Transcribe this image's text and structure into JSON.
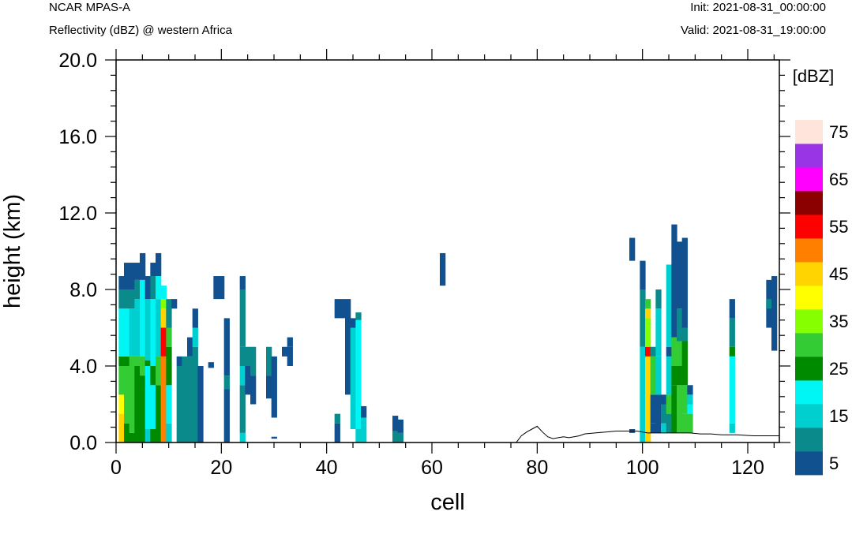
{
  "header": {
    "model": "NCAR MPAS-A",
    "field": "Reflectivity (dBZ) @ western Africa",
    "init": "Init: 2021-08-31_00:00:00",
    "valid": "Valid: 2021-08-31_19:00:00"
  },
  "chart_data": {
    "type": "heatmap",
    "xlabel": "cell",
    "ylabel": "height (km)",
    "xlim": [
      0,
      126
    ],
    "ylim": [
      0,
      20
    ],
    "x_ticks": [
      0,
      20,
      40,
      60,
      80,
      100,
      120
    ],
    "y_ticks": [
      0,
      4,
      8,
      12,
      16,
      20
    ],
    "x_tick_labels": [
      "0",
      "20",
      "40",
      "60",
      "80",
      "100",
      "120"
    ],
    "y_tick_labels": [
      "0.0",
      "4.0",
      "8.0",
      "12.0",
      "16.0",
      "20.0"
    ],
    "colorbar": {
      "unit_label": "[dBZ]",
      "levels": [
        5,
        10,
        15,
        20,
        25,
        30,
        35,
        40,
        45,
        50,
        55,
        60,
        65,
        70,
        75
      ],
      "labels": [
        "5",
        "15",
        "25",
        "35",
        "45",
        "55",
        "65",
        "75"
      ],
      "colors": [
        "#11518f",
        "#0a8a8a",
        "#00cfcf",
        "#00f5f5",
        "#008a00",
        "#34cc34",
        "#86ff00",
        "#ffff00",
        "#ffd400",
        "#ff8000",
        "#ff0000",
        "#8b0000",
        "#ff00ff",
        "#9a35e6",
        "#ffe4db"
      ]
    },
    "terrain": [
      [
        0,
        0
      ],
      [
        76,
        0
      ],
      [
        77,
        0.35
      ],
      [
        78,
        0.55
      ],
      [
        79,
        0.7
      ],
      [
        80,
        0.85
      ],
      [
        81,
        0.55
      ],
      [
        82,
        0.3
      ],
      [
        83,
        0.2
      ],
      [
        84,
        0.25
      ],
      [
        85,
        0.3
      ],
      [
        86,
        0.25
      ],
      [
        87,
        0.3
      ],
      [
        88,
        0.35
      ],
      [
        89,
        0.45
      ],
      [
        91,
        0.5
      ],
      [
        93,
        0.55
      ],
      [
        95,
        0.6
      ],
      [
        97,
        0.6
      ],
      [
        99,
        0.6
      ],
      [
        101,
        0.5
      ],
      [
        103,
        0.5
      ],
      [
        105,
        0.5
      ],
      [
        107,
        0.5
      ],
      [
        109,
        0.5
      ],
      [
        111,
        0.45
      ],
      [
        113,
        0.45
      ],
      [
        115,
        0.4
      ],
      [
        118,
        0.4
      ],
      [
        121,
        0.35
      ],
      [
        124,
        0.35
      ],
      [
        126,
        0.35
      ]
    ],
    "columns": [
      {
        "x": 1,
        "cells": [
          [
            0,
            1.5,
            45
          ],
          [
            1.5,
            2.5,
            40
          ],
          [
            2.5,
            4,
            30
          ],
          [
            4,
            4.5,
            25
          ],
          [
            4.5,
            7,
            20
          ],
          [
            7,
            8,
            10
          ],
          [
            8,
            8.7,
            5
          ]
        ]
      },
      {
        "x": 2,
        "cells": [
          [
            0,
            1,
            25
          ],
          [
            1,
            4,
            30
          ],
          [
            4,
            4.5,
            25
          ],
          [
            4.5,
            7,
            20
          ],
          [
            7,
            8,
            10
          ],
          [
            8,
            9.4,
            5
          ]
        ]
      },
      {
        "x": 3,
        "cells": [
          [
            0,
            0.5,
            25
          ],
          [
            0.5,
            4.5,
            30
          ],
          [
            4.5,
            7,
            15
          ],
          [
            7,
            8,
            10
          ],
          [
            8,
            9.4,
            5
          ]
        ]
      },
      {
        "x": 4,
        "cells": [
          [
            0,
            4,
            25
          ],
          [
            4,
            4.5,
            30
          ],
          [
            4.5,
            7.5,
            15
          ],
          [
            7.5,
            8.5,
            10
          ],
          [
            8.5,
            9.4,
            5
          ]
        ]
      },
      {
        "x": 5,
        "cells": [
          [
            0,
            3.5,
            25
          ],
          [
            3.5,
            4.5,
            30
          ],
          [
            4.5,
            8.5,
            20
          ],
          [
            8.5,
            9.9,
            5
          ]
        ]
      },
      {
        "x": 6,
        "cells": [
          [
            0,
            0.7,
            15
          ],
          [
            0.7,
            4,
            20
          ],
          [
            4,
            4.3,
            25
          ],
          [
            4.3,
            7.5,
            15
          ],
          [
            7.5,
            8.7,
            5
          ]
        ]
      },
      {
        "x": 7,
        "cells": [
          [
            0,
            0.7,
            25
          ],
          [
            0.7,
            3,
            20
          ],
          [
            3,
            4,
            25
          ],
          [
            4,
            7.5,
            20
          ],
          [
            7.5,
            8.7,
            10
          ],
          [
            8.7,
            9.4,
            5
          ]
        ]
      },
      {
        "x": 8,
        "cells": [
          [
            0,
            3,
            25
          ],
          [
            3,
            4.5,
            30
          ],
          [
            4.5,
            7.5,
            15
          ],
          [
            7.5,
            8.7,
            20
          ],
          [
            8.7,
            9.9,
            5
          ]
        ]
      },
      {
        "x": 9,
        "cells": [
          [
            0,
            4.5,
            50
          ],
          [
            4.5,
            6,
            55
          ],
          [
            6,
            7,
            45
          ],
          [
            7,
            7.5,
            35
          ],
          [
            7.5,
            8.2,
            20
          ]
        ]
      },
      {
        "x": 10,
        "cells": [
          [
            0,
            1,
            15
          ],
          [
            1,
            3,
            20
          ],
          [
            3,
            4,
            25
          ],
          [
            4,
            5,
            25
          ],
          [
            5,
            6,
            30
          ],
          [
            6,
            7.5,
            10
          ]
        ]
      },
      {
        "x": 11,
        "cells": [
          [
            7,
            7.5,
            5
          ]
        ]
      },
      {
        "x": 12,
        "cells": [
          [
            0,
            4,
            10
          ],
          [
            4,
            4.5,
            5
          ]
        ]
      },
      {
        "x": 13,
        "cells": [
          [
            0,
            4.5,
            10
          ]
        ]
      },
      {
        "x": 14,
        "cells": [
          [
            0,
            4.5,
            10
          ],
          [
            4.5,
            5.5,
            5
          ]
        ]
      },
      {
        "x": 15,
        "cells": [
          [
            0,
            5,
            10
          ],
          [
            5,
            6,
            15
          ],
          [
            6,
            7,
            5
          ]
        ]
      },
      {
        "x": 16,
        "cells": [
          [
            0,
            4,
            5
          ]
        ]
      },
      {
        "x": 18,
        "cells": [
          [
            3.9,
            4.2,
            5
          ]
        ]
      },
      {
        "x": 19,
        "cells": [
          [
            7.5,
            8.7,
            5
          ]
        ]
      },
      {
        "x": 20,
        "cells": [
          [
            7.5,
            8.7,
            5
          ]
        ]
      },
      {
        "x": 21,
        "cells": [
          [
            0,
            2.8,
            5
          ],
          [
            2.8,
            3.5,
            10
          ],
          [
            3.5,
            6.5,
            5
          ]
        ]
      },
      {
        "x": 24,
        "cells": [
          [
            0,
            0.5,
            15
          ],
          [
            0.5,
            3,
            10
          ],
          [
            3,
            4,
            15
          ],
          [
            4,
            5,
            10
          ],
          [
            5,
            8,
            10
          ],
          [
            8,
            8.7,
            5
          ]
        ]
      },
      {
        "x": 25,
        "cells": [
          [
            2.5,
            4,
            5
          ],
          [
            4,
            5,
            10
          ]
        ]
      },
      {
        "x": 26,
        "cells": [
          [
            2,
            3.5,
            5
          ],
          [
            3.5,
            5,
            10
          ]
        ]
      },
      {
        "x": 29,
        "cells": [
          [
            2.3,
            3.5,
            5
          ],
          [
            3.5,
            5,
            10
          ]
        ]
      },
      {
        "x": 30,
        "cells": [
          [
            0.2,
            0.3,
            5
          ],
          [
            1.3,
            4.5,
            5
          ]
        ]
      },
      {
        "x": 32,
        "cells": [
          [
            4.5,
            5,
            5
          ]
        ]
      },
      {
        "x": 33,
        "cells": [
          [
            4,
            5,
            5
          ],
          [
            5,
            5.5,
            5
          ]
        ]
      },
      {
        "x": 42,
        "cells": [
          [
            0,
            1,
            5
          ],
          [
            1,
            1.5,
            10
          ],
          [
            6.5,
            7.5,
            5
          ]
        ]
      },
      {
        "x": 43,
        "cells": [
          [
            6.5,
            7.5,
            5
          ]
        ]
      },
      {
        "x": 44,
        "cells": [
          [
            2.5,
            4,
            5
          ],
          [
            4,
            7.5,
            5
          ]
        ]
      },
      {
        "x": 45,
        "cells": [
          [
            0.7,
            6,
            15
          ],
          [
            6,
            6.5,
            5
          ]
        ]
      },
      {
        "x": 46,
        "cells": [
          [
            0,
            0.7,
            15
          ],
          [
            0.7,
            6.4,
            20
          ],
          [
            6.4,
            6.8,
            10
          ]
        ]
      },
      {
        "x": 47,
        "cells": [
          [
            0,
            1.3,
            15
          ],
          [
            1.3,
            1.9,
            5
          ]
        ]
      },
      {
        "x": 53,
        "cells": [
          [
            0,
            0.6,
            10
          ],
          [
            0.6,
            1.4,
            5
          ]
        ]
      },
      {
        "x": 54,
        "cells": [
          [
            0,
            0.5,
            10
          ],
          [
            0.5,
            1.2,
            5
          ]
        ]
      },
      {
        "x": 62,
        "cells": [
          [
            8.2,
            9.9,
            5
          ]
        ]
      },
      {
        "x": 98,
        "cells": [
          [
            0.5,
            0.7,
            5
          ],
          [
            9.5,
            10.7,
            5
          ]
        ]
      },
      {
        "x": 100,
        "cells": [
          [
            0,
            5,
            15
          ],
          [
            5,
            8,
            10
          ],
          [
            8,
            9.5,
            5
          ]
        ]
      },
      {
        "x": 101,
        "cells": [
          [
            0,
            4.5,
            45
          ],
          [
            4.5,
            5,
            55
          ],
          [
            5,
            6.5,
            35
          ],
          [
            6.5,
            7,
            45
          ],
          [
            7,
            7.5,
            30
          ]
        ]
      },
      {
        "x": 102,
        "cells": [
          [
            0.5,
            1,
            5
          ],
          [
            1,
            2.5,
            5
          ],
          [
            2.5,
            4.5,
            30
          ],
          [
            4.5,
            5,
            10
          ]
        ]
      },
      {
        "x": 103,
        "cells": [
          [
            0.5,
            2.5,
            5
          ],
          [
            2.5,
            4.5,
            15
          ],
          [
            4.5,
            7,
            15
          ],
          [
            7,
            8,
            10
          ]
        ]
      },
      {
        "x": 104,
        "cells": [
          [
            0.5,
            1,
            15
          ],
          [
            1,
            2,
            10
          ],
          [
            2,
            2.5,
            5
          ]
        ]
      },
      {
        "x": 105,
        "cells": [
          [
            0.5,
            1.5,
            10
          ],
          [
            1.5,
            2.5,
            30
          ],
          [
            2.5,
            4.5,
            15
          ],
          [
            4.5,
            5,
            5
          ],
          [
            5,
            9.3,
            15
          ]
        ]
      },
      {
        "x": 106,
        "cells": [
          [
            0.5,
            3,
            25
          ],
          [
            3,
            4,
            25
          ],
          [
            4,
            5.5,
            30
          ],
          [
            5.5,
            6,
            5
          ],
          [
            6,
            11.4,
            5
          ]
        ]
      },
      {
        "x": 107,
        "cells": [
          [
            0.5,
            3,
            30
          ],
          [
            3,
            4,
            25
          ],
          [
            4,
            5.3,
            30
          ],
          [
            5.3,
            7,
            10
          ],
          [
            7,
            10.5,
            5
          ]
        ]
      },
      {
        "x": 108,
        "cells": [
          [
            0.5,
            1.5,
            30
          ],
          [
            1.5,
            3,
            30
          ],
          [
            3,
            5.3,
            25
          ],
          [
            5.3,
            6,
            10
          ],
          [
            6,
            10.7,
            5
          ]
        ]
      },
      {
        "x": 109,
        "cells": [
          [
            0.5,
            1.5,
            30
          ],
          [
            1.5,
            2,
            20
          ],
          [
            2,
            2.5,
            15
          ],
          [
            2.5,
            3,
            5
          ]
        ]
      },
      {
        "x": 117,
        "cells": [
          [
            0.5,
            1,
            15
          ],
          [
            1,
            4.5,
            20
          ],
          [
            4.5,
            5,
            25
          ],
          [
            5,
            6.5,
            10
          ],
          [
            6.5,
            7.5,
            5
          ]
        ]
      },
      {
        "x": 124,
        "cells": [
          [
            6,
            8.5,
            5
          ],
          [
            7,
            7.5,
            10
          ]
        ]
      },
      {
        "x": 125,
        "cells": [
          [
            4.8,
            8.7,
            5
          ]
        ]
      }
    ]
  }
}
